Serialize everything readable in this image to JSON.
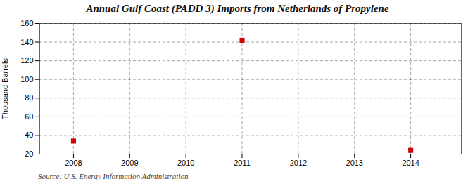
{
  "chart_data": {
    "type": "scatter",
    "title": "Annual Gulf Coast (PADD 3) Imports from Netherlands of Propylene",
    "ylabel": "Thousand Barrels",
    "source": "Source: U.S. Energy Information Administration",
    "x": [
      2008,
      2011,
      2014
    ],
    "values": [
      34,
      142,
      24
    ],
    "color": "#cc0000",
    "marker": "square",
    "xlim": [
      2007.4,
      2014.9
    ],
    "ylim": [
      20,
      160
    ],
    "xticks": [
      2008,
      2009,
      2010,
      2011,
      2012,
      2013,
      2014
    ],
    "yticks": [
      20,
      40,
      60,
      80,
      100,
      120,
      140,
      160
    ],
    "grid": true
  }
}
